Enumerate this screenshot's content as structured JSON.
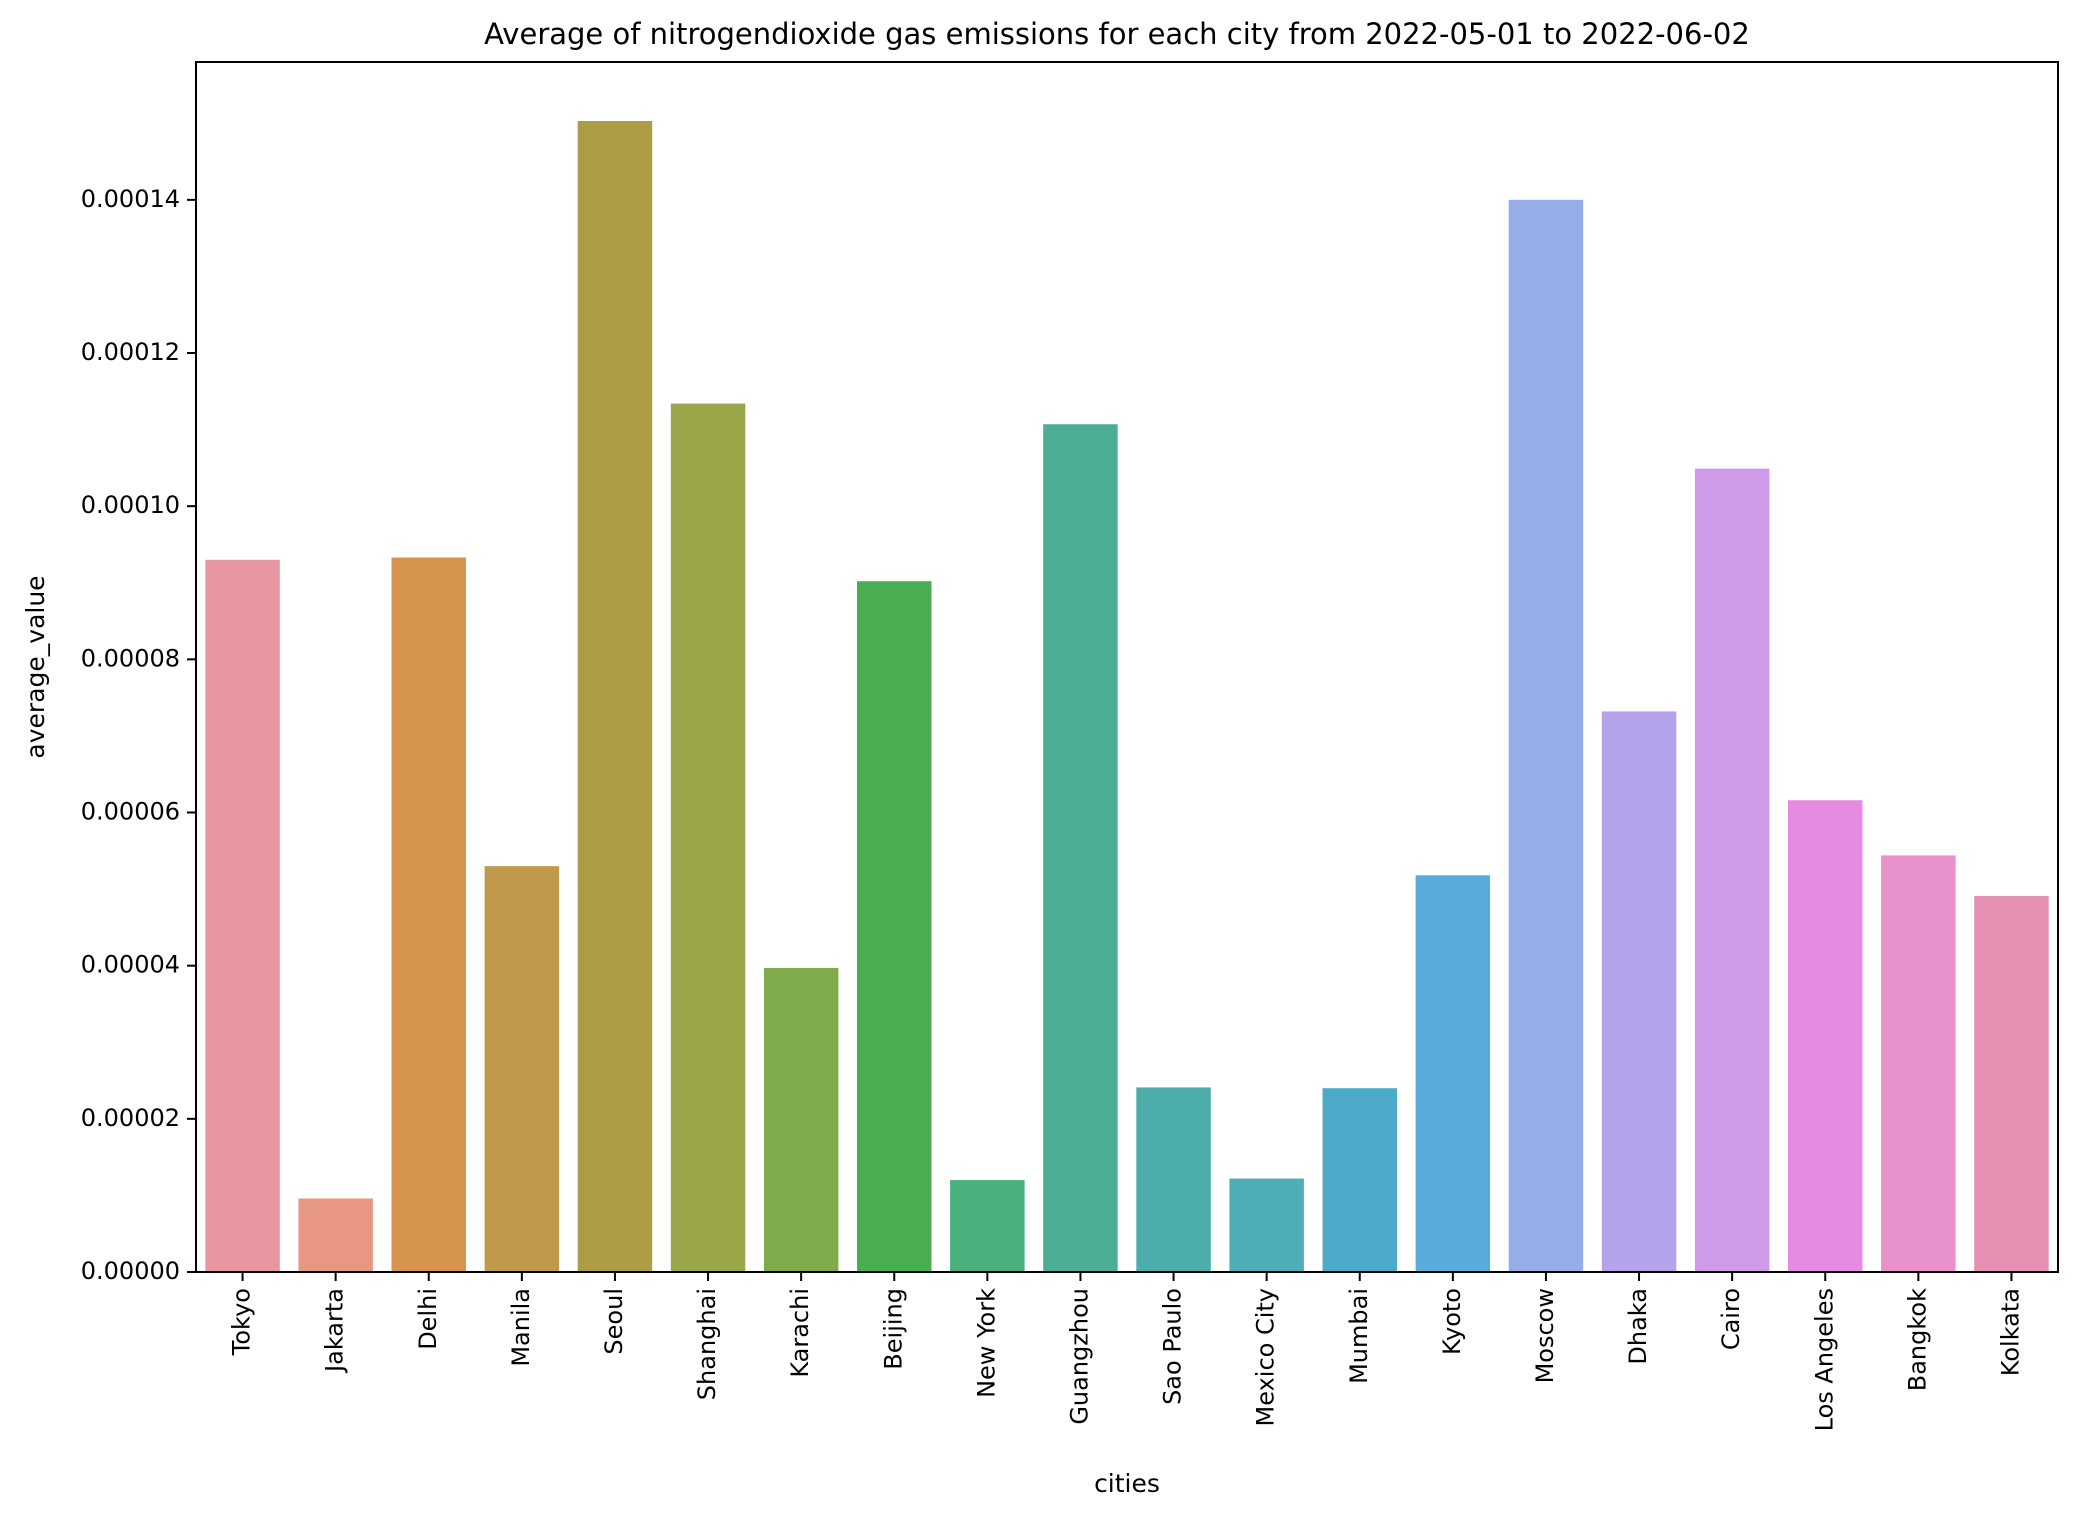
{
  "chart_data": {
    "type": "bar",
    "title": "Average of nitrogendioxide gas emissions for each city from 2022-05-01 to 2022-06-02",
    "xlabel": "cities",
    "ylabel": "average_value",
    "ylim": [
      0,
      0.000158
    ],
    "yticks": [
      0,
      2e-05,
      4e-05,
      6e-05,
      8e-05,
      0.0001,
      0.00012,
      0.00014
    ],
    "ytick_labels": [
      "0.00000",
      "0.00002",
      "0.00004",
      "0.00006",
      "0.00008",
      "0.00010",
      "0.00012",
      "0.00014"
    ],
    "grid": false,
    "categories": [
      "Tokyo",
      "Jakarta",
      "Delhi",
      "Manila",
      "Seoul",
      "Shanghai",
      "Karachi",
      "Beijing",
      "New York",
      "Guangzhou",
      "Sao Paulo",
      "Mexico City",
      "Mumbai",
      "Kyoto",
      "Moscow",
      "Dhaka",
      "Cairo",
      "Los Angeles",
      "Bangkok",
      "Kolkata"
    ],
    "values": [
      9.3e-05,
      9.6e-06,
      9.33e-05,
      5.3e-05,
      0.0001503,
      0.0001134,
      3.97e-05,
      9.02e-05,
      1.2e-05,
      0.0001107,
      2.41e-05,
      1.22e-05,
      2.4e-05,
      5.18e-05,
      0.00014,
      7.32e-05,
      0.0001049,
      6.16e-05,
      5.44e-05,
      4.91e-05
    ],
    "colors": [
      "#e8969f",
      "#e89783",
      "#d6944f",
      "#bf9a4d",
      "#ab9c45",
      "#9aa649",
      "#80ab4d",
      "#48ae51",
      "#49b07e",
      "#4bae94",
      "#4dadab",
      "#4eadb7",
      "#4eaac9",
      "#58abdb",
      "#96aee7",
      "#b4a3ea",
      "#cf9ae8",
      "#e58be2",
      "#e991ca",
      "#e691b4"
    ]
  }
}
